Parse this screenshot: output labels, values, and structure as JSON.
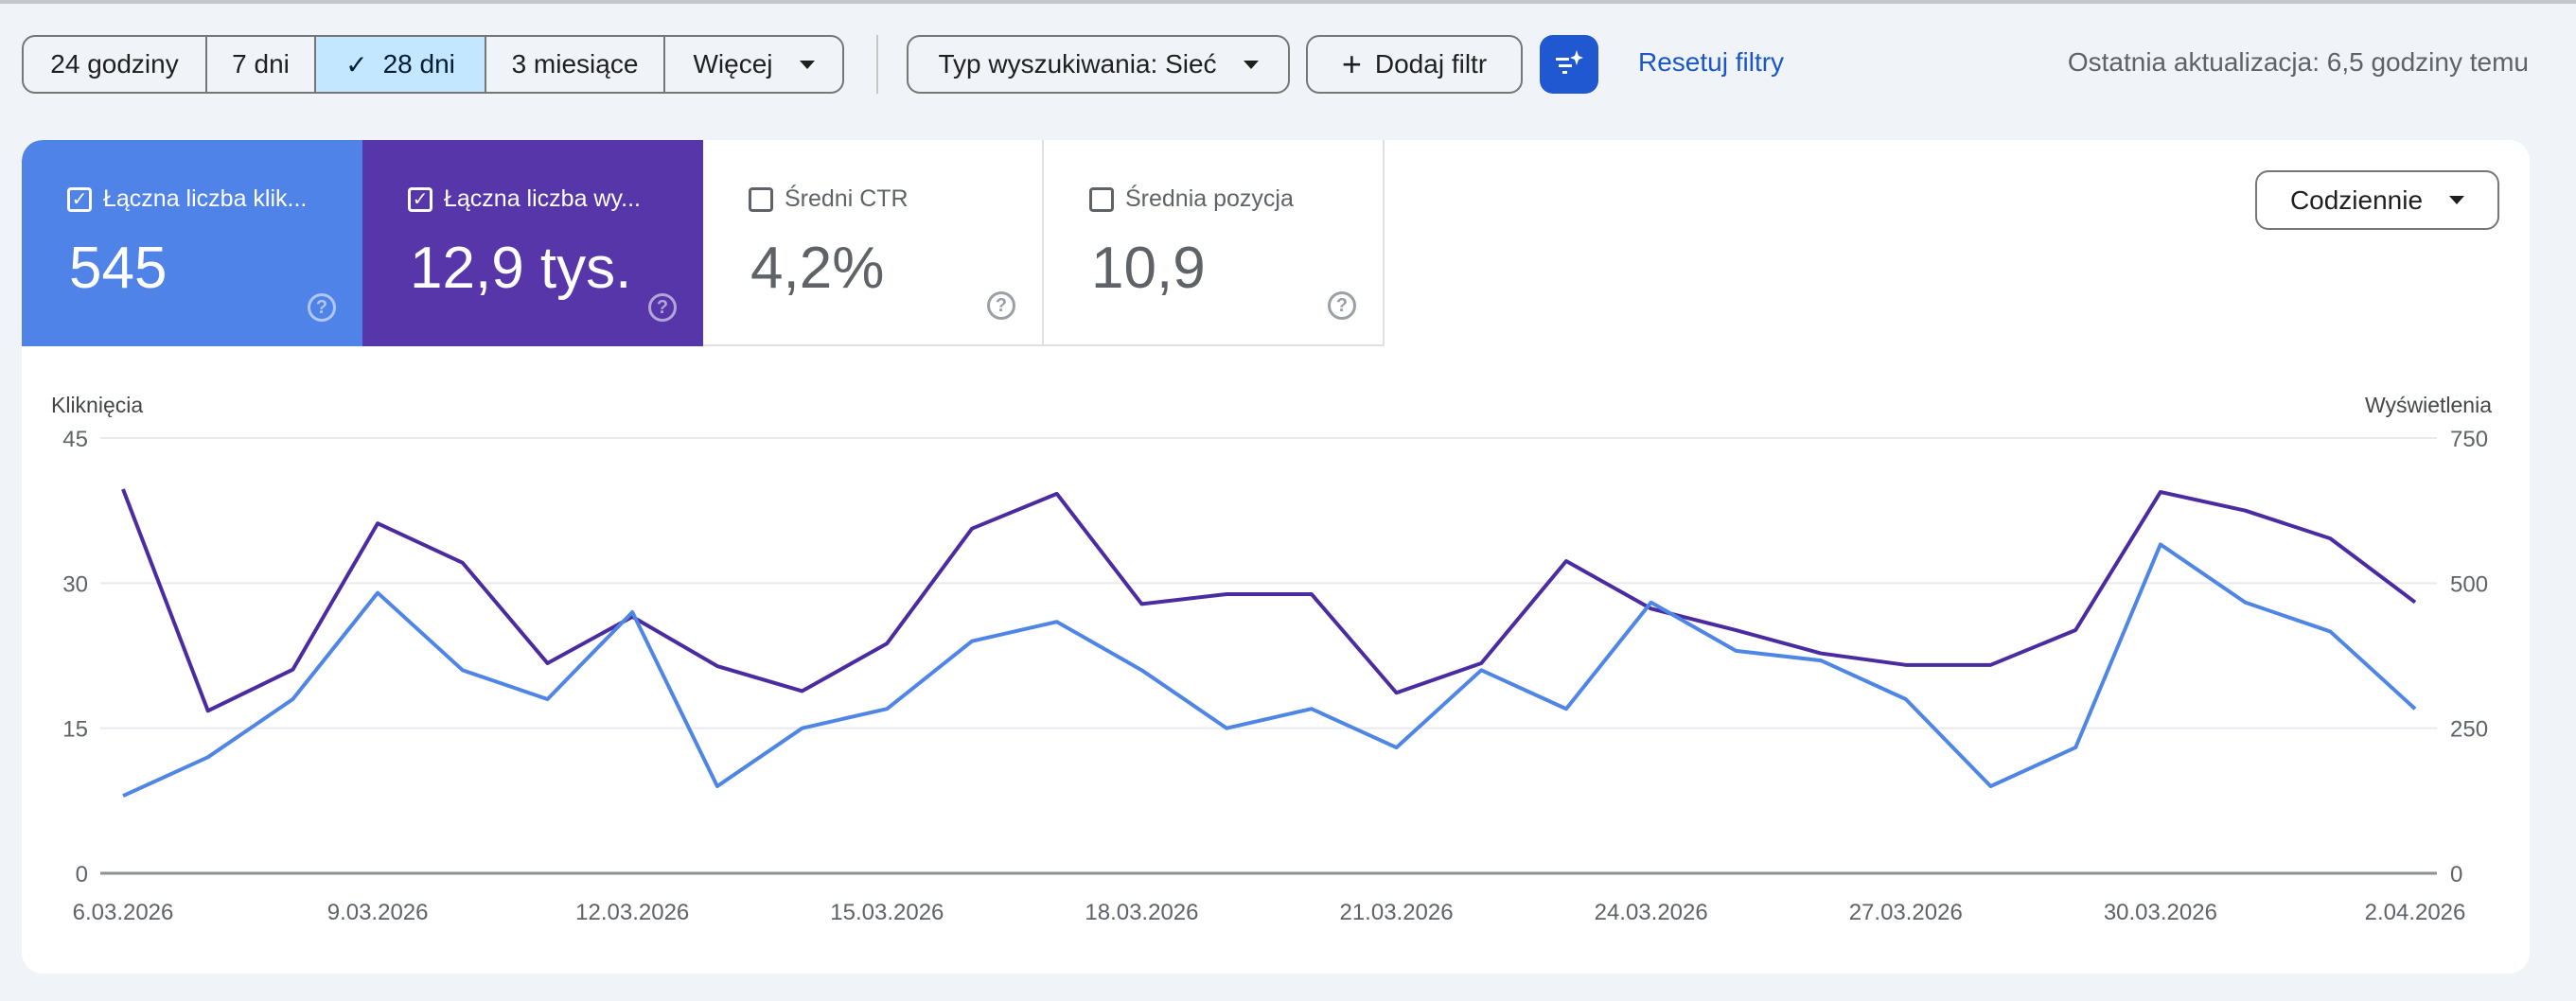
{
  "toolbar": {
    "ranges": [
      "24 godziny",
      "7 dni",
      "28 dni",
      "3 miesiące",
      "Więcej"
    ],
    "selected_range": "28 dni",
    "search_type": "Typ wyszukiwania: Sieć",
    "add_filter": "Dodaj filtr",
    "reset_filters": "Resetuj filtry",
    "last_update": "Ostatnia aktualizacja: 6,5 godziny temu"
  },
  "metrics": [
    {
      "label": "Łączna liczba klik...",
      "value": "545",
      "checked": true,
      "color": "#5083e8"
    },
    {
      "label": "Łączna liczba wy...",
      "value": "12,9 tys.",
      "checked": true,
      "color": "#5636a8"
    },
    {
      "label": "Średni CTR",
      "value": "4,2%",
      "checked": false
    },
    {
      "label": "Średnia pozycja",
      "value": "10,9",
      "checked": false
    }
  ],
  "granularity": "Codziennie",
  "chart_data": {
    "type": "line",
    "left_axis_label": "Kliknięcia",
    "right_axis_label": "Wyświetlenia",
    "left_ylim": [
      0,
      45
    ],
    "right_ylim": [
      0,
      750
    ],
    "left_ticks": [
      "0",
      "15",
      "30",
      "45"
    ],
    "right_ticks": [
      "0",
      "250",
      "500",
      "750"
    ],
    "x": [
      "6.03.2026",
      "7.03.2026",
      "8.03.2026",
      "9.03.2026",
      "10.03.2026",
      "11.03.2026",
      "12.03.2026",
      "13.03.2026",
      "14.03.2026",
      "15.03.2026",
      "16.03.2026",
      "17.03.2026",
      "18.03.2026",
      "19.03.2026",
      "20.03.2026",
      "21.03.2026",
      "22.03.2026",
      "23.03.2026",
      "24.03.2026",
      "25.03.2026",
      "26.03.2026",
      "27.03.2026",
      "28.03.2026",
      "29.03.2026",
      "30.03.2026",
      "31.03.2026",
      "1.04.2026",
      "2.04.2026"
    ],
    "x_tick_labels": [
      "6.03.2026",
      "9.03.2026",
      "12.03.2026",
      "15.03.2026",
      "18.03.2026",
      "21.03.2026",
      "24.03.2026",
      "27.03.2026",
      "30.03.2026",
      "2.04.2026"
    ],
    "series": [
      {
        "name": "Kliknięcia",
        "axis": "left",
        "color": "#4f86e6",
        "values": [
          8,
          12,
          18,
          29,
          21,
          18,
          27,
          9,
          15,
          17,
          24,
          26,
          21,
          15,
          17,
          13,
          21,
          17,
          28,
          23,
          22,
          18,
          9,
          13,
          34,
          28,
          25,
          17
        ]
      },
      {
        "name": "Wyświetlenia",
        "axis": "right",
        "color": "#4a2ba0",
        "values": [
          662,
          280,
          351,
          603,
          535,
          362,
          442,
          357,
          314,
          396,
          594,
          654,
          464,
          481,
          481,
          311,
          362,
          538,
          456,
          419,
          379,
          359,
          359,
          419,
          657,
          625,
          577,
          467
        ]
      }
    ]
  }
}
